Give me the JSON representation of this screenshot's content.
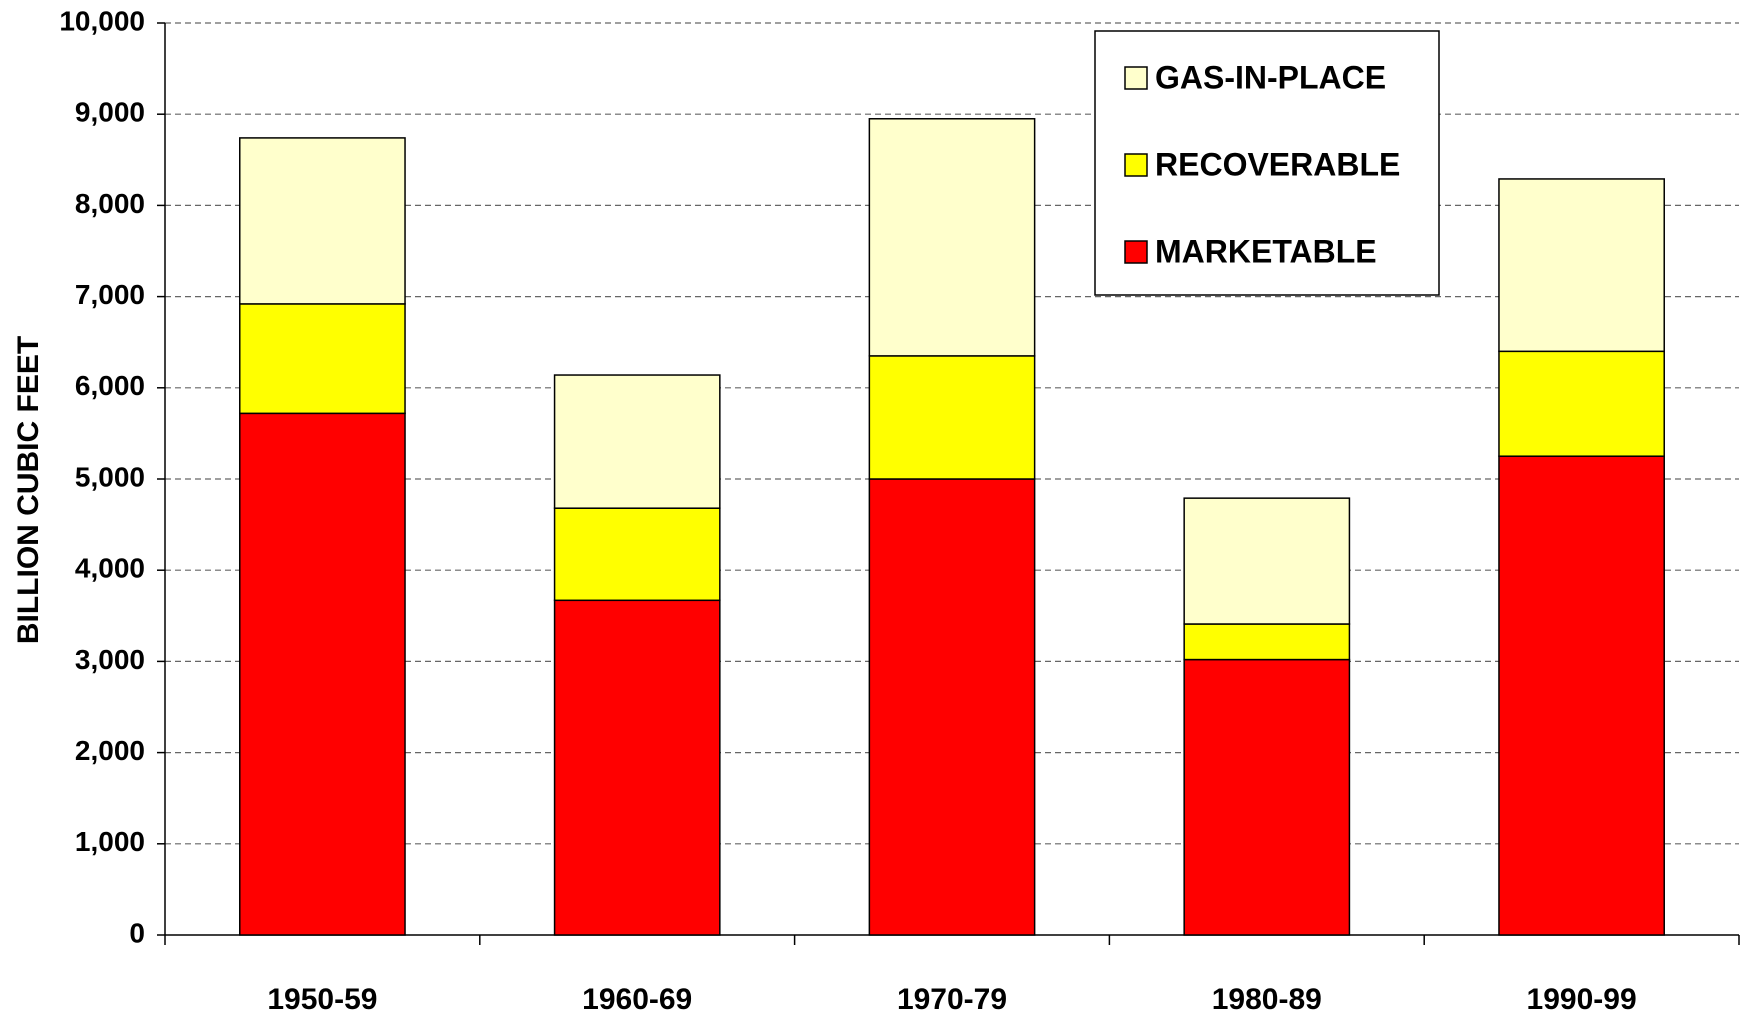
{
  "chart_data": {
    "type": "stacked_bar",
    "y_label": "BILLION CUBIC FEET",
    "categories": [
      "1950-59",
      "1960-69",
      "1970-79",
      "1980-89",
      "1990-99"
    ],
    "series": [
      {
        "name": "MARKETABLE",
        "color": "#ff0000",
        "values": [
          5720,
          3670,
          5000,
          3020,
          5250
        ]
      },
      {
        "name": "RECOVERABLE",
        "color": "#ffff00",
        "values": [
          1200,
          1010,
          1350,
          390,
          1150
        ]
      },
      {
        "name": "GAS-IN-PLACE",
        "color": "#ffffcc",
        "values": [
          1820,
          1460,
          2600,
          1380,
          1890
        ]
      }
    ],
    "ylim": [
      0,
      10000
    ],
    "yticks": [
      0,
      {
        "value": 1000,
        "label": "1,000"
      },
      {
        "value": 2000,
        "label": "2,000"
      },
      {
        "value": 3000,
        "label": "3,000"
      },
      {
        "value": 4000,
        "label": "4,000"
      },
      {
        "value": 5000,
        "label": "5,000"
      },
      {
        "value": 6000,
        "label": "6,000"
      },
      {
        "value": 7000,
        "label": "7,000"
      },
      {
        "value": 8000,
        "label": "8,000"
      },
      {
        "value": 9000,
        "label": "9,000"
      },
      {
        "value": 10000,
        "label": "10,000"
      }
    ],
    "grid": true,
    "legend": "upper right"
  }
}
